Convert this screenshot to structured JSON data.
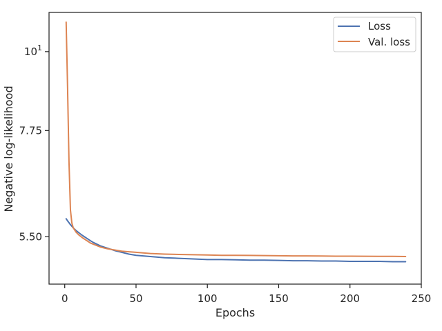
{
  "chart_data": {
    "type": "line",
    "title": "",
    "xlabel": "Epochs",
    "ylabel": "Negative log-likelihood",
    "xlim": [
      -11,
      250
    ],
    "ylim": [
      4.72,
      11.35
    ],
    "y_scale": "log",
    "x_ticks": [
      0,
      50,
      100,
      150,
      200,
      250
    ],
    "y_ticks": [
      {
        "value": 10,
        "label": "10",
        "sup": "1"
      },
      {
        "value": 7.75,
        "label": "7.75",
        "sup": ""
      },
      {
        "value": 5.5,
        "label": "5.50",
        "sup": ""
      }
    ],
    "grid": false,
    "legend_position": "top-right",
    "series": [
      {
        "name": "Loss",
        "color": "#4c72b0",
        "x": [
          1,
          2,
          4,
          6,
          8,
          10,
          12,
          15,
          18,
          20,
          25,
          30,
          35,
          40,
          45,
          50,
          60,
          70,
          80,
          90,
          100,
          110,
          120,
          130,
          140,
          150,
          160,
          170,
          180,
          190,
          200,
          210,
          220,
          230,
          239
        ],
        "y": [
          5.83,
          5.79,
          5.72,
          5.66,
          5.61,
          5.57,
          5.53,
          5.48,
          5.43,
          5.4,
          5.34,
          5.3,
          5.26,
          5.23,
          5.2,
          5.18,
          5.16,
          5.14,
          5.13,
          5.12,
          5.11,
          5.11,
          5.105,
          5.1,
          5.1,
          5.095,
          5.09,
          5.09,
          5.085,
          5.085,
          5.08,
          5.08,
          5.08,
          5.075,
          5.075
        ]
      },
      {
        "name": "Val. loss",
        "color": "#dd8452",
        "x": [
          1,
          2,
          3,
          4,
          5,
          6,
          8,
          10,
          12,
          15,
          18,
          20,
          25,
          30,
          35,
          40,
          45,
          50,
          60,
          70,
          80,
          90,
          100,
          110,
          120,
          130,
          140,
          150,
          160,
          170,
          180,
          190,
          200,
          210,
          220,
          230,
          239
        ],
        "y": [
          11.0,
          8.9,
          7.0,
          6.0,
          5.75,
          5.66,
          5.58,
          5.53,
          5.49,
          5.44,
          5.39,
          5.37,
          5.32,
          5.29,
          5.27,
          5.25,
          5.24,
          5.23,
          5.21,
          5.2,
          5.195,
          5.19,
          5.185,
          5.18,
          5.18,
          5.178,
          5.175,
          5.173,
          5.17,
          5.17,
          5.168,
          5.166,
          5.165,
          5.164,
          5.163,
          5.162,
          5.16
        ]
      }
    ]
  }
}
